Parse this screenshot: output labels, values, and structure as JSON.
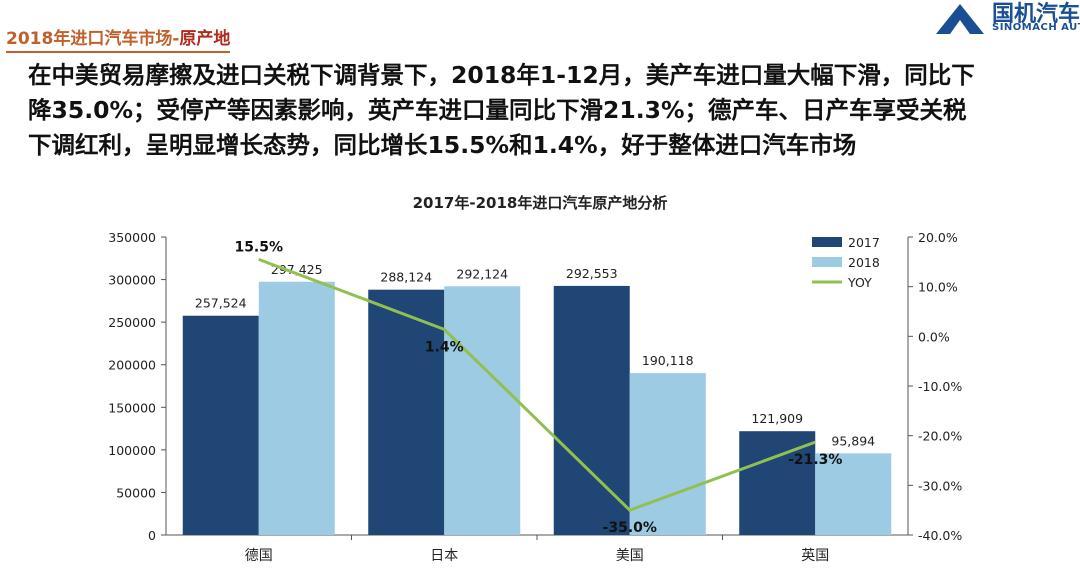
{
  "header": {
    "crumb_main": "2018年进口汽车市场-",
    "crumb_sub": "原产地",
    "logo_cn": "国机汽车",
    "logo_en": "SINOMACH AUTO"
  },
  "headline": {
    "lines": [
      "在中美贸易摩擦及进口关税下调背景下，2018年1-12月，美产车进口量大幅下滑，同比下",
      "降35.0%；受停产等因素影响，英产车进口量同比下滑21.3%；德产车、日产车享受关税",
      "下调红利，呈明显增长态势，同比增长15.5%和1.4%，好于整体进口汽车市场"
    ]
  },
  "colors": {
    "series_2017": "#1f4675",
    "series_2018": "#9ccbe3",
    "yoy_line": "#92c050",
    "crumb": "#c0602a"
  },
  "chart_data": {
    "type": "bar",
    "title": "2017年-2018年进口汽车原产地分析",
    "categories": [
      "德国",
      "日本",
      "美国",
      "英国"
    ],
    "series": [
      {
        "name": "2017",
        "values": [
          257524,
          288124,
          292553,
          121909
        ],
        "labels": [
          "257,524",
          "288,124",
          "292,553",
          "121,909"
        ]
      },
      {
        "name": "2018",
        "values": [
          297425,
          292124,
          190118,
          95894
        ],
        "labels": [
          "297,425",
          "292,124",
          "190,118",
          "95,894"
        ]
      }
    ],
    "line_series": {
      "name": "YOY",
      "values": [
        15.5,
        1.4,
        -35.0,
        -21.3
      ],
      "labels": [
        "15.5%",
        "1.4%",
        "-35.0%",
        "-21.3%"
      ]
    },
    "ylim": [
      0,
      350000
    ],
    "yticks": [
      "350000",
      "300000",
      "250000",
      "200000",
      "150000",
      "100000",
      "50000",
      "0"
    ],
    "y2lim": [
      -40,
      20
    ],
    "y2ticks": [
      "20.0%",
      "10.0%",
      "0.0%",
      "-10.0%",
      "-20.0%",
      "-30.0%",
      "-40.0%"
    ],
    "legend_position": "top-right",
    "grid": false
  }
}
